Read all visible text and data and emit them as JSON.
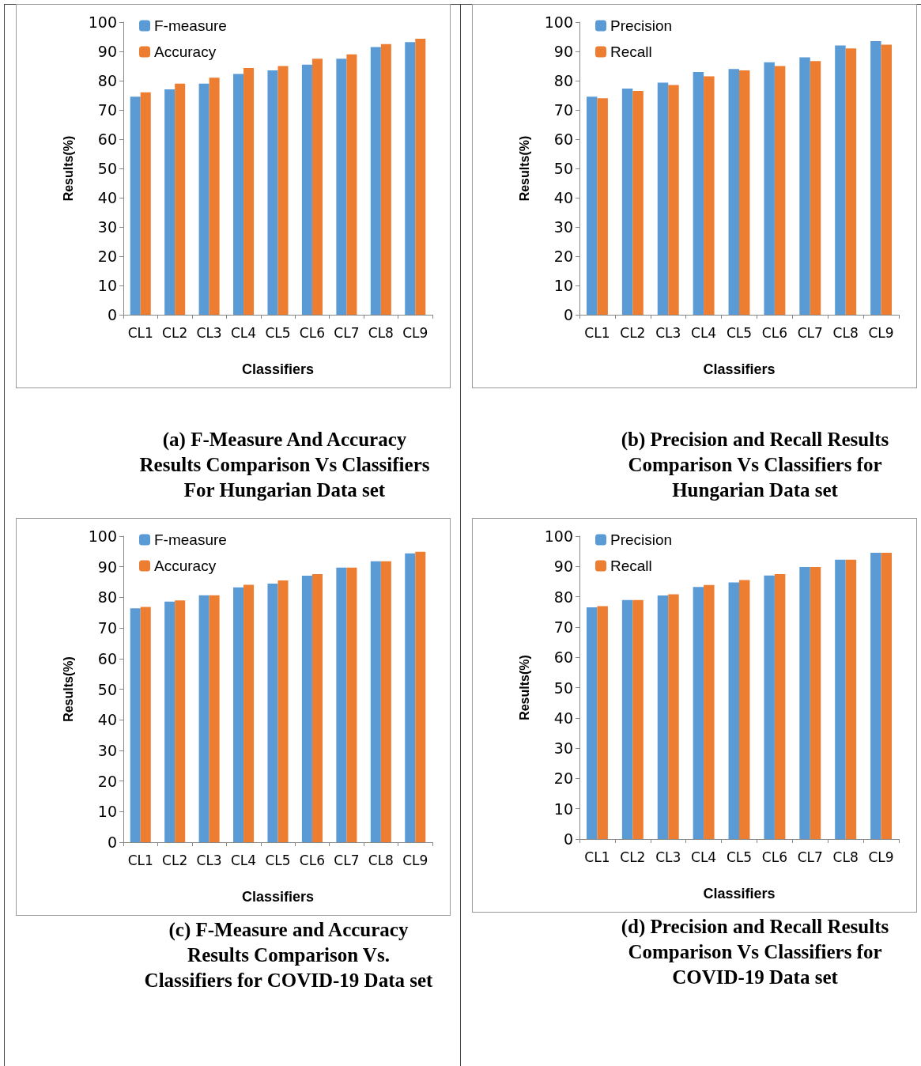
{
  "chart_data": [
    {
      "type": "bar",
      "title": "(a)  F-Measure And Accuracy Results Comparison Vs Classifiers For Hungarian Data set",
      "xlabel": "Classifiers",
      "ylabel": "Results(%)",
      "categories": [
        "CL1",
        "CL2",
        "CL3",
        "CL4",
        "CL5",
        "CL6",
        "CL7",
        "CL8",
        "CL9"
      ],
      "ylim": [
        0,
        100
      ],
      "yticks": [
        0,
        10,
        20,
        30,
        40,
        50,
        60,
        70,
        80,
        90,
        100
      ],
      "grid": false,
      "legend": "top left",
      "series": [
        {
          "name": "F-measure",
          "color": "#5b9bd5",
          "values": [
            74.5,
            77,
            79,
            82.3,
            83.5,
            85.5,
            87.5,
            91.5,
            93.2
          ]
        },
        {
          "name": "Accuracy",
          "color": "#ed7d31",
          "values": [
            76,
            79,
            81,
            84.3,
            85,
            87.5,
            89,
            92.5,
            94.3
          ]
        }
      ]
    },
    {
      "type": "bar",
      "title": "(b)  Precision and Recall Results Comparison Vs Classifiers for Hungarian Data set",
      "xlabel": "Classifiers",
      "ylabel": "Results(%)",
      "categories": [
        "CL1",
        "CL2",
        "CL3",
        "CL4",
        "CL5",
        "CL6",
        "CL7",
        "CL8",
        "CL9"
      ],
      "ylim": [
        0,
        100
      ],
      "yticks": [
        0,
        10,
        20,
        30,
        40,
        50,
        60,
        70,
        80,
        90,
        100
      ],
      "grid": false,
      "legend": "top left",
      "series": [
        {
          "name": "Precision",
          "color": "#5b9bd5",
          "values": [
            74.5,
            77.3,
            79.3,
            83,
            84,
            86.3,
            88,
            92,
            93.5
          ]
        },
        {
          "name": "Recall",
          "color": "#ed7d31",
          "values": [
            74,
            76.5,
            78.5,
            81.5,
            83.5,
            85,
            86.7,
            91,
            92.3
          ]
        }
      ]
    },
    {
      "type": "bar",
      "title": "(c)  F-Measure and Accuracy Results Comparison Vs. Classifiers for COVID-19 Data set",
      "xlabel": "Classifiers",
      "ylabel": "Results(%)",
      "categories": [
        "CL1",
        "CL2",
        "CL3",
        "CL4",
        "CL5",
        "CL6",
        "CL7",
        "CL8",
        "CL9"
      ],
      "ylim": [
        0,
        100
      ],
      "yticks": [
        0,
        10,
        20,
        30,
        40,
        50,
        60,
        70,
        80,
        90,
        100
      ],
      "grid": false,
      "legend": "top left",
      "series": [
        {
          "name": "F-measure",
          "color": "#5b9bd5",
          "values": [
            76.4,
            78.6,
            80.7,
            83.3,
            84.5,
            87.1,
            89.7,
            91.8,
            94.4
          ]
        },
        {
          "name": "Accuracy",
          "color": "#ed7d31",
          "values": [
            76.9,
            79,
            80.7,
            84.1,
            85.5,
            87.6,
            89.7,
            91.8,
            94.9
          ]
        }
      ]
    },
    {
      "type": "bar",
      "title": "(d)  Precision and Recall Results Comparison Vs Classifiers for COVID-19 Data set",
      "xlabel": "Classifiers",
      "ylabel": "Results(%)",
      "categories": [
        "CL1",
        "CL2",
        "CL3",
        "CL4",
        "CL5",
        "CL6",
        "CL7",
        "CL8",
        "CL9"
      ],
      "ylim": [
        0,
        100
      ],
      "yticks": [
        0,
        10,
        20,
        30,
        40,
        50,
        60,
        70,
        80,
        90,
        100
      ],
      "grid": false,
      "legend": "top left",
      "series": [
        {
          "name": "Precision",
          "color": "#5b9bd5",
          "values": [
            76.5,
            78.9,
            80.4,
            83.2,
            84.7,
            87,
            89.8,
            92.2,
            94.5
          ]
        },
        {
          "name": "Recall",
          "color": "#ed7d31",
          "values": [
            76.9,
            78.9,
            80.8,
            83.9,
            85.5,
            87.5,
            89.8,
            92.2,
            94.5
          ]
        }
      ]
    }
  ]
}
